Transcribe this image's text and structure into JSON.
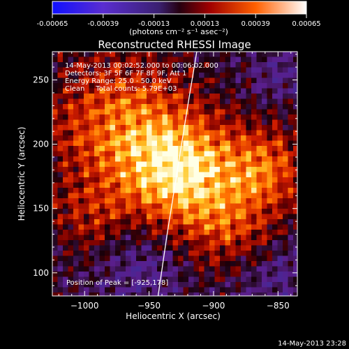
{
  "chart_data": {
    "type": "heatmap",
    "title": "Reconstructed RHESSI Image",
    "xlabel": "Heliocentric X (arcsec)",
    "ylabel": "Heliocentric Y (arcsec)",
    "xlim": [
      -1025,
      -835
    ],
    "ylim": [
      82,
      272
    ],
    "xticks": [
      -1000,
      -950,
      -900,
      -850
    ],
    "yticks": [
      100,
      150,
      200,
      250
    ],
    "colorbar": {
      "ticks": [
        "-0.00065",
        "-0.00039",
        "-0.00013",
        "0.00013",
        "0.00039",
        "0.00065"
      ],
      "unit_line": "(photons cm⁻² s⁻¹ asec⁻²)",
      "range": [
        -0.00065,
        0.00065
      ]
    },
    "annotations": [
      "14-May-2013 00:02:52.000 to 00:06:02.000",
      "Detectors: 3F 5F 6F 7F 8F 9F, Att 1",
      "Energy Range: 25.0 - 50.0 keV",
      "Clean     Total counts: 5.79E+03"
    ],
    "peak_label": "Position of Peak = [-925,178]",
    "peak": {
      "x": -925,
      "y": 178
    },
    "grid": false,
    "limb_line": [
      [
        -943,
        82
      ],
      [
        -936,
        130
      ],
      [
        -928,
        180
      ],
      [
        -920,
        230
      ],
      [
        -913,
        272
      ]
    ]
  },
  "footer": {
    "timestamp": "14-May-2013 23:28"
  }
}
